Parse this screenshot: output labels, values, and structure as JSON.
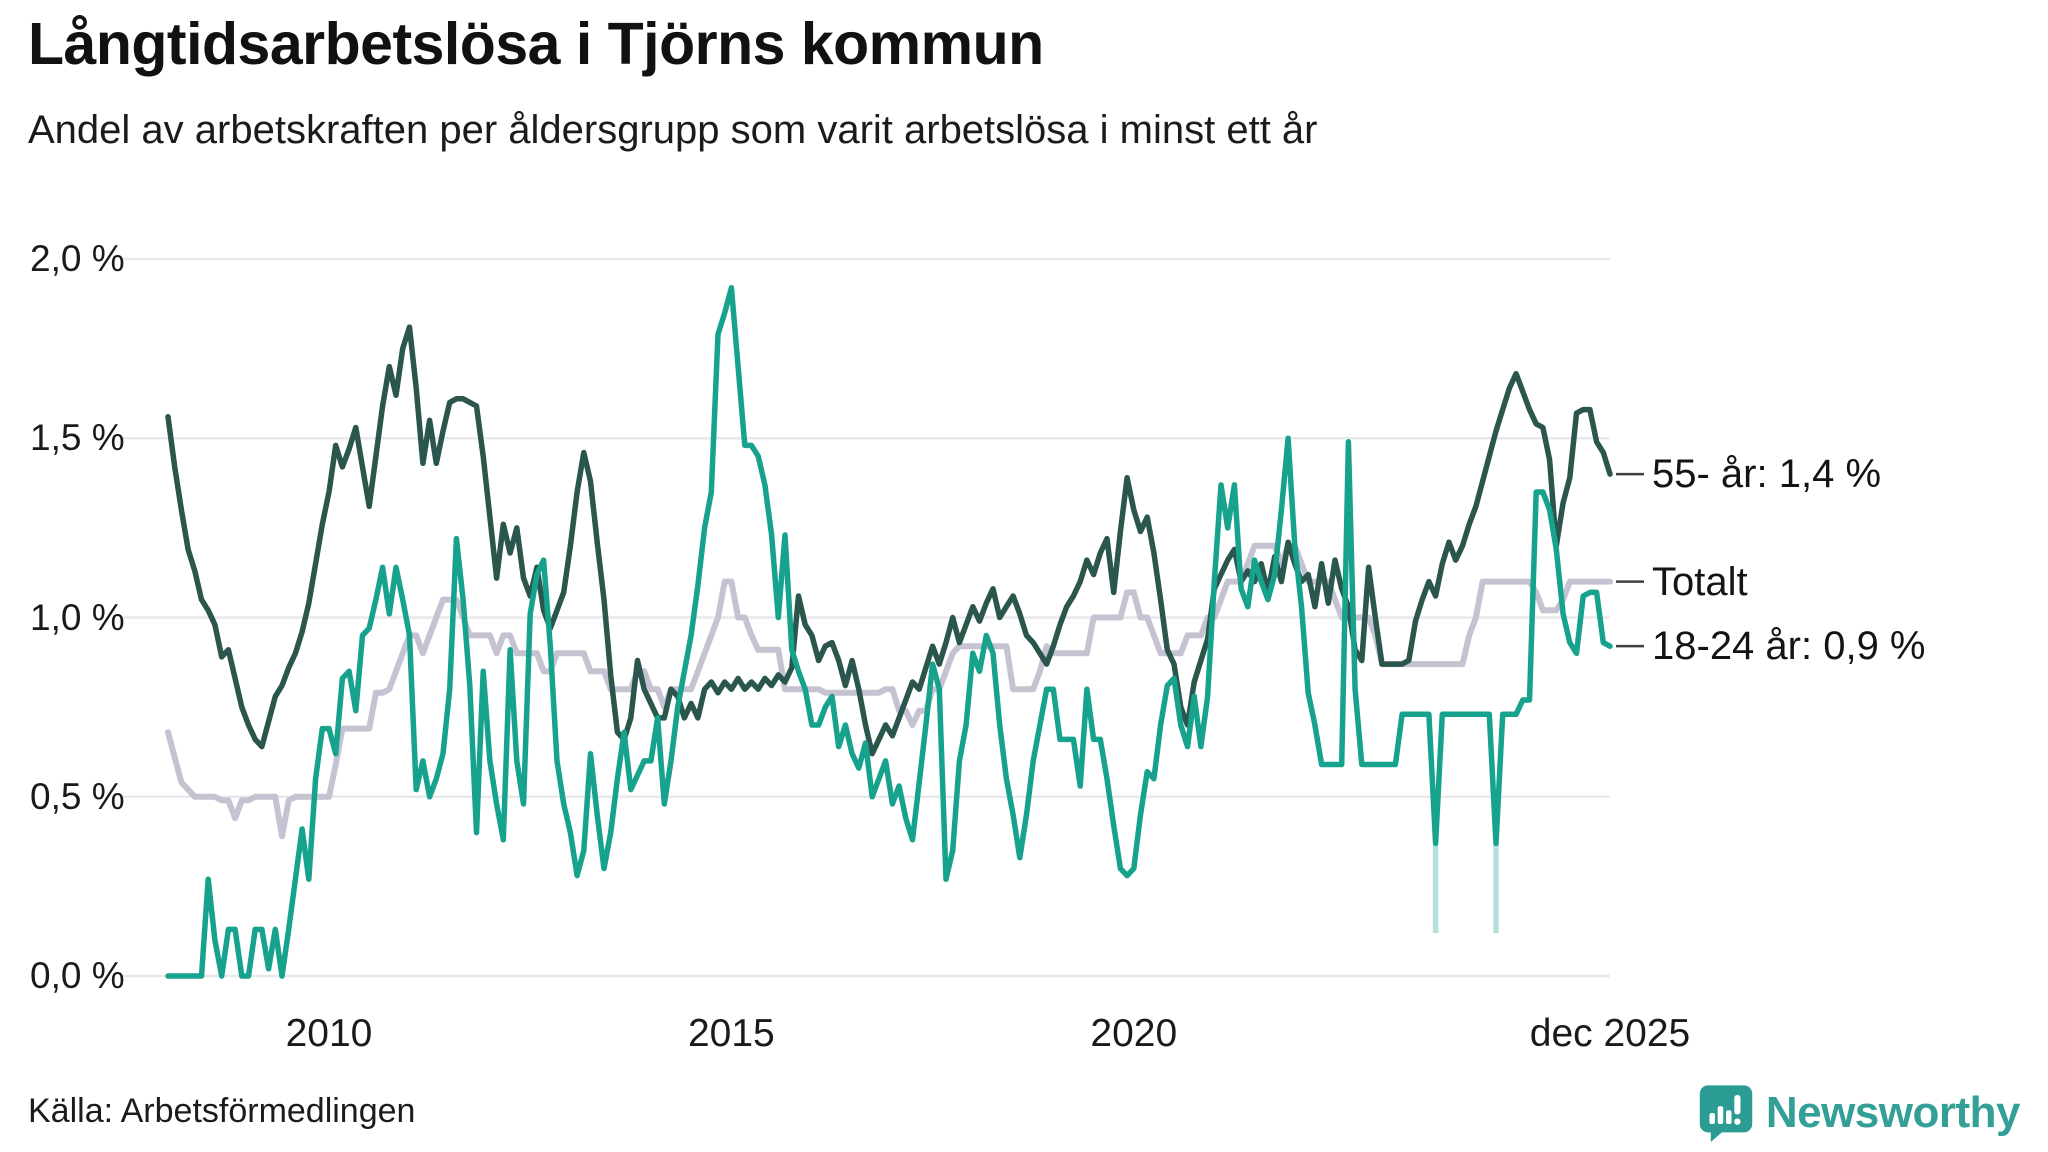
{
  "title": "Långtidsarbetslösa i Tjörns kommun",
  "subtitle": "Andel av arbetskraften per åldersgrupp som varit arbetslösa i minst ett år",
  "source": "Källa: Arbetsförmedlingen",
  "branding": {
    "name": "Newsworthy",
    "icon": "newsworthy-bubble-chart-icon",
    "icon_color": "#2b9c93",
    "text_color": "#339f97"
  },
  "chart_data": {
    "type": "line",
    "title": "Långtidsarbetslösa i Tjörns kommun",
    "xlabel": "",
    "ylabel": "Andel av arbetskraften (%)",
    "x_start": "2008-01",
    "x_end": "2025-12",
    "points_per_series": 216,
    "grid": true,
    "legend_position": "end-of-line-labels",
    "colors": {
      "gridline": "#e9e9ec",
      "text": "#1a1a1a",
      "connector_dash": "#3f3f3f"
    },
    "y_axis": {
      "ylim": [
        0.0,
        2.0
      ],
      "ticks": [
        "2,0 %",
        "1,5 %",
        "1,0 %",
        "0,5 %",
        "0,0 %"
      ],
      "tick_values": [
        2.0,
        1.5,
        1.0,
        0.5,
        0.0
      ]
    },
    "x_axis": {
      "ticks": [
        {
          "label": "2010",
          "index": 24
        },
        {
          "label": "2015",
          "index": 84
        },
        {
          "label": "2020",
          "index": 144
        },
        {
          "label": "dec 2025",
          "index": 215
        }
      ]
    },
    "series": [
      {
        "name": "Totalt",
        "end_label": "Totalt",
        "end_value": "1,1 %",
        "color": "#c5c2d2",
        "width": 6,
        "values": [
          0.68,
          0.61,
          0.54,
          0.52,
          0.5,
          0.5,
          0.5,
          0.5,
          0.49,
          0.49,
          0.44,
          0.49,
          0.49,
          0.5,
          0.5,
          0.5,
          0.5,
          0.39,
          0.49,
          0.5,
          0.5,
          0.5,
          0.5,
          0.5,
          0.5,
          0.59,
          0.69,
          0.69,
          0.69,
          0.69,
          0.69,
          0.79,
          0.79,
          0.8,
          0.85,
          0.9,
          0.95,
          0.95,
          0.9,
          0.95,
          1.0,
          1.05,
          1.05,
          1.05,
          1.0,
          0.95,
          0.95,
          0.95,
          0.95,
          0.9,
          0.95,
          0.95,
          0.9,
          0.9,
          0.9,
          0.9,
          0.85,
          0.85,
          0.9,
          0.9,
          0.9,
          0.9,
          0.9,
          0.85,
          0.85,
          0.85,
          0.8,
          0.8,
          0.8,
          0.8,
          0.85,
          0.85,
          0.8,
          0.8,
          0.75,
          0.8,
          0.8,
          0.8,
          0.8,
          0.85,
          0.9,
          0.95,
          1.0,
          1.1,
          1.1,
          1.0,
          1.0,
          0.95,
          0.91,
          0.91,
          0.91,
          0.91,
          0.8,
          0.8,
          0.8,
          0.8,
          0.8,
          0.8,
          0.79,
          0.79,
          0.79,
          0.79,
          0.79,
          0.79,
          0.79,
          0.79,
          0.79,
          0.8,
          0.8,
          0.74,
          0.74,
          0.7,
          0.74,
          0.74,
          0.8,
          0.8,
          0.85,
          0.9,
          0.92,
          0.92,
          0.92,
          0.92,
          0.92,
          0.92,
          0.92,
          0.92,
          0.8,
          0.8,
          0.8,
          0.8,
          0.85,
          0.92,
          0.9,
          0.9,
          0.9,
          0.9,
          0.9,
          0.9,
          1.0,
          1.0,
          1.0,
          1.0,
          1.0,
          1.07,
          1.07,
          1.0,
          1.0,
          0.95,
          0.9,
          0.9,
          0.9,
          0.9,
          0.95,
          0.95,
          0.95,
          1.0,
          1.0,
          1.05,
          1.1,
          1.1,
          1.1,
          1.15,
          1.2,
          1.2,
          1.2,
          1.2,
          1.15,
          1.2,
          1.2,
          1.15,
          1.1,
          1.1,
          1.1,
          1.1,
          1.05,
          1.0,
          1.0,
          1.0,
          1.0,
          1.0,
          0.95,
          0.87,
          0.87,
          0.87,
          0.87,
          0.87,
          0.87,
          0.87,
          0.87,
          0.87,
          0.87,
          0.87,
          0.87,
          0.87,
          0.95,
          1.0,
          1.1,
          1.1,
          1.1,
          1.1,
          1.1,
          1.1,
          1.1,
          1.1,
          1.07,
          1.02,
          1.02,
          1.02,
          1.05,
          1.1,
          1.1,
          1.1,
          1.1,
          1.1,
          1.1,
          1.1
        ]
      },
      {
        "name": "55- år",
        "end_label": "55- år: 1,4 %",
        "end_value": "1,4 %",
        "color": "#2a564e",
        "width": 5.5,
        "values": [
          1.56,
          1.42,
          1.3,
          1.19,
          1.13,
          1.05,
          1.02,
          0.98,
          0.89,
          0.91,
          0.83,
          0.75,
          0.7,
          0.66,
          0.64,
          0.71,
          0.78,
          0.81,
          0.86,
          0.9,
          0.96,
          1.04,
          1.15,
          1.26,
          1.35,
          1.48,
          1.42,
          1.47,
          1.53,
          1.42,
          1.31,
          1.45,
          1.59,
          1.7,
          1.62,
          1.75,
          1.81,
          1.64,
          1.43,
          1.55,
          1.43,
          1.52,
          1.6,
          1.61,
          1.61,
          1.6,
          1.59,
          1.45,
          1.28,
          1.11,
          1.26,
          1.18,
          1.25,
          1.11,
          1.06,
          1.14,
          1.02,
          0.97,
          1.02,
          1.07,
          1.2,
          1.35,
          1.46,
          1.38,
          1.21,
          1.05,
          0.84,
          0.68,
          0.66,
          0.72,
          0.88,
          0.8,
          0.76,
          0.72,
          0.72,
          0.8,
          0.78,
          0.72,
          0.76,
          0.72,
          0.8,
          0.82,
          0.79,
          0.82,
          0.8,
          0.83,
          0.8,
          0.82,
          0.8,
          0.83,
          0.81,
          0.84,
          0.82,
          0.86,
          1.06,
          0.98,
          0.95,
          0.88,
          0.92,
          0.93,
          0.88,
          0.81,
          0.88,
          0.8,
          0.7,
          0.62,
          0.66,
          0.7,
          0.67,
          0.72,
          0.77,
          0.82,
          0.8,
          0.86,
          0.92,
          0.87,
          0.93,
          1.0,
          0.93,
          0.98,
          1.03,
          0.99,
          1.04,
          1.08,
          1.0,
          1.03,
          1.06,
          1.01,
          0.95,
          0.93,
          0.9,
          0.87,
          0.92,
          0.98,
          1.03,
          1.06,
          1.1,
          1.16,
          1.12,
          1.18,
          1.22,
          1.07,
          1.24,
          1.39,
          1.3,
          1.24,
          1.28,
          1.18,
          1.05,
          0.91,
          0.87,
          0.75,
          0.7,
          0.82,
          0.88,
          0.94,
          1.08,
          1.12,
          1.16,
          1.19,
          1.1,
          1.13,
          1.1,
          1.15,
          1.07,
          1.17,
          1.1,
          1.21,
          1.15,
          1.1,
          1.12,
          1.03,
          1.15,
          1.04,
          1.16,
          1.08,
          1.03,
          0.91,
          0.88,
          1.14,
          1.0,
          0.87,
          0.87,
          0.87,
          0.87,
          0.88,
          0.99,
          1.05,
          1.1,
          1.06,
          1.15,
          1.21,
          1.16,
          1.2,
          1.26,
          1.31,
          1.38,
          1.45,
          1.52,
          1.58,
          1.64,
          1.68,
          1.63,
          1.58,
          1.54,
          1.53,
          1.44,
          1.2,
          1.32,
          1.39,
          1.57,
          1.58,
          1.58,
          1.49,
          1.46,
          1.4
        ]
      },
      {
        "name": "18-24 år",
        "end_label": "18-24 år: 0,9 %",
        "end_value": "0,9 %",
        "color": "#17a28e",
        "width": 5.5,
        "faded_dips": [
          {
            "index": 189,
            "to": 0.12
          },
          {
            "index": 198,
            "to": 0.12
          }
        ],
        "values": [
          0.0,
          0.0,
          0.0,
          0.0,
          0.0,
          0.0,
          0.27,
          0.1,
          0.0,
          0.13,
          0.13,
          0.0,
          0.0,
          0.13,
          0.13,
          0.02,
          0.13,
          0.0,
          0.13,
          0.27,
          0.41,
          0.27,
          0.55,
          0.69,
          0.69,
          0.62,
          0.83,
          0.85,
          0.74,
          0.95,
          0.97,
          1.05,
          1.14,
          1.01,
          1.14,
          1.05,
          0.95,
          0.52,
          0.6,
          0.5,
          0.55,
          0.62,
          0.8,
          1.22,
          1.05,
          0.81,
          0.4,
          0.85,
          0.6,
          0.48,
          0.38,
          0.91,
          0.6,
          0.48,
          1.01,
          1.12,
          1.16,
          0.92,
          0.6,
          0.48,
          0.4,
          0.28,
          0.35,
          0.62,
          0.45,
          0.3,
          0.4,
          0.55,
          0.68,
          0.52,
          0.56,
          0.6,
          0.6,
          0.72,
          0.48,
          0.6,
          0.75,
          0.85,
          0.95,
          1.09,
          1.25,
          1.35,
          1.79,
          1.85,
          1.92,
          1.7,
          1.48,
          1.48,
          1.45,
          1.37,
          1.23,
          1.0,
          1.23,
          0.91,
          0.85,
          0.8,
          0.7,
          0.7,
          0.75,
          0.78,
          0.64,
          0.7,
          0.62,
          0.58,
          0.65,
          0.5,
          0.55,
          0.6,
          0.48,
          0.53,
          0.44,
          0.38,
          0.54,
          0.7,
          0.87,
          0.8,
          0.27,
          0.35,
          0.6,
          0.7,
          0.9,
          0.85,
          0.95,
          0.9,
          0.7,
          0.55,
          0.45,
          0.33,
          0.45,
          0.6,
          0.7,
          0.8,
          0.8,
          0.66,
          0.66,
          0.66,
          0.53,
          0.8,
          0.66,
          0.66,
          0.55,
          0.42,
          0.3,
          0.28,
          0.3,
          0.45,
          0.57,
          0.55,
          0.7,
          0.81,
          0.83,
          0.7,
          0.64,
          0.78,
          0.64,
          0.78,
          1.1,
          1.37,
          1.25,
          1.37,
          1.08,
          1.03,
          1.16,
          1.1,
          1.05,
          1.12,
          1.3,
          1.5,
          1.2,
          1.03,
          0.79,
          0.7,
          0.59,
          0.59,
          0.59,
          0.59,
          1.49,
          0.8,
          0.59,
          0.59,
          0.59,
          0.59,
          0.59,
          0.59,
          0.73,
          0.73,
          0.73,
          0.73,
          0.73,
          0.37,
          0.73,
          0.73,
          0.73,
          0.73,
          0.73,
          0.73,
          0.73,
          0.73,
          0.37,
          0.73,
          0.73,
          0.73,
          0.77,
          0.77,
          1.35,
          1.35,
          1.3,
          1.19,
          1.01,
          0.93,
          0.9,
          1.06,
          1.07,
          1.07,
          0.93,
          0.92
        ]
      }
    ]
  }
}
